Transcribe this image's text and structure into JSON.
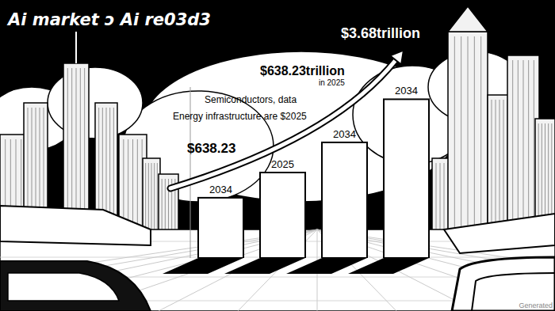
{
  "chart_data": {
    "type": "bar",
    "title": "Ai market ɔ Ai re03d3",
    "categories": [
      "2034",
      "2025",
      "2034",
      "2034"
    ],
    "values": [
      74,
      105,
      142,
      195
    ],
    "color": "#ffffff",
    "ylim": [
      0,
      210
    ],
    "tick_labels": "x",
    "annotations": [
      "$3.68trillion",
      "$638.23trillion",
      "in 2025",
      "Semiconductors, data",
      "Energy infrastructure are $2025",
      "$638.23",
      "Generated"
    ]
  }
}
